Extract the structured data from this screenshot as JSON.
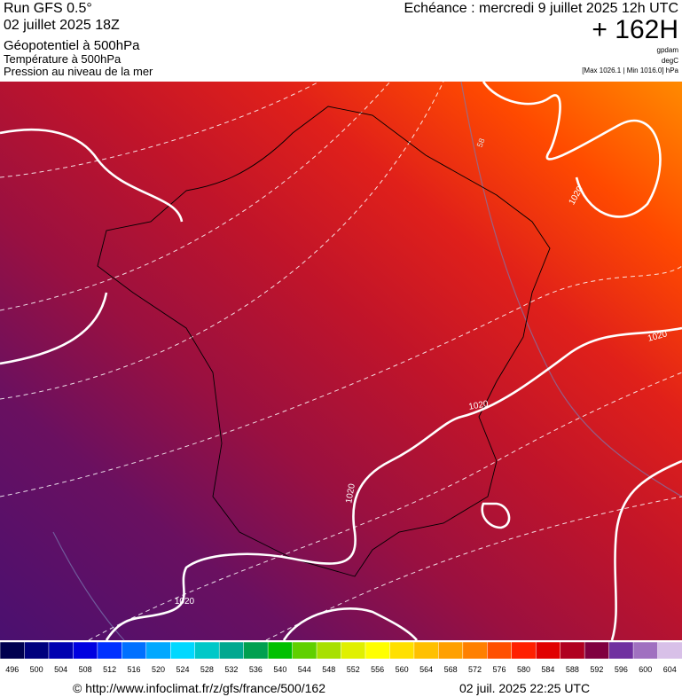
{
  "header": {
    "run": "Run GFS 0.5°",
    "run_date": "02 juillet 2025 18Z",
    "field1": "Géopotentiel à 500hPa",
    "field2": "Température à 500hPa",
    "field3": "Pression au niveau de la mer",
    "valid": "Echéance : mercredi 9 juillet 2025 12h UTC",
    "lead": "+ 162H",
    "unit1": "gpdam",
    "unit2": "degC",
    "range": "[Max 1026.1 | Min 1016.0] hPa"
  },
  "isobar_labels": [
    "1020",
    "1020",
    "1020",
    "1020",
    "1020",
    "58"
  ],
  "colorbar": {
    "labels": [
      "496",
      "500",
      "504",
      "508",
      "512",
      "516",
      "520",
      "524",
      "528",
      "532",
      "536",
      "540",
      "544",
      "548",
      "552",
      "556",
      "560",
      "564",
      "568",
      "572",
      "576",
      "580",
      "584",
      "588",
      "592",
      "596",
      "600",
      "604"
    ],
    "colors": [
      "#00004f",
      "#00007d",
      "#0000b0",
      "#0000e0",
      "#0030ff",
      "#0070ff",
      "#00a8ff",
      "#00d8ff",
      "#00c8c8",
      "#00a890",
      "#00a050",
      "#00c000",
      "#60d000",
      "#a8e000",
      "#e0f000",
      "#ffff00",
      "#ffe000",
      "#ffc000",
      "#ffa000",
      "#ff8000",
      "#ff5000",
      "#ff2000",
      "#e00000",
      "#b00020",
      "#800040",
      "#7030a0",
      "#a070c0",
      "#d8c0e8"
    ]
  },
  "footer": {
    "url": "© http://www.infoclimat.fr/z/gfs/france/500/162",
    "stamp": "02 juil. 2025 22:25 UTC"
  }
}
